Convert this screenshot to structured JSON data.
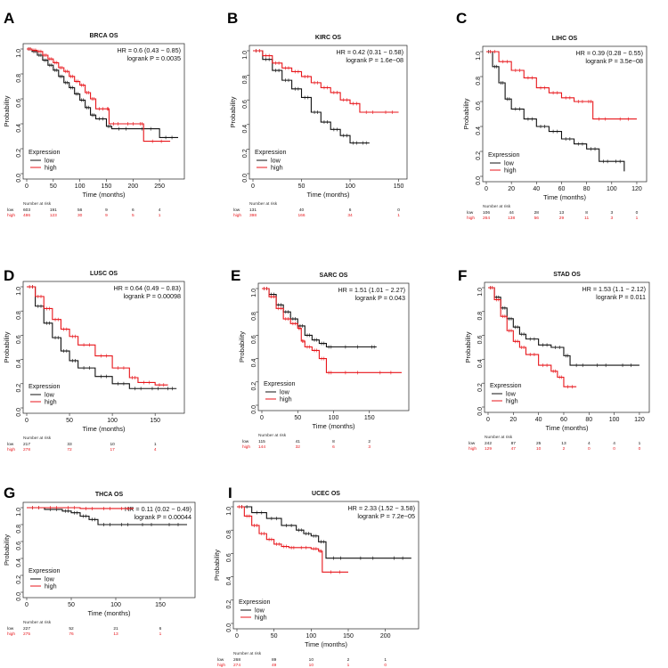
{
  "figure": {
    "colors": {
      "low": "#111111",
      "high": "#e8161b"
    },
    "panels": [
      {
        "id": "BRCA",
        "letter": "A",
        "title": "BRCA OS",
        "hr": "HR = 0.6 (0.43 − 0.85)",
        "logrank": "logrank P = 0.0035",
        "legend_title": "Expression",
        "legend_low": "low",
        "legend_high": "high",
        "xlabel": "Time (months)",
        "ylabel": "Probability",
        "xticks": [
          0,
          50,
          100,
          150,
          200,
          250
        ],
        "xmax": 290,
        "risk_title": "Number at risk",
        "risk_low": [
          "603",
          "191",
          "56",
          "9",
          "6",
          "4"
        ],
        "risk_high": [
          "486",
          "123",
          "30",
          "9",
          "5",
          "1"
        ],
        "chart_data": {
          "type": "line",
          "title": "BRCA OS",
          "xlabel": "Time (months)",
          "ylabel": "Probability",
          "xlim": [
            0,
            290
          ],
          "ylim": [
            0,
            1
          ],
          "series": [
            {
              "name": "low",
              "x": [
                0,
                10,
                20,
                30,
                40,
                50,
                60,
                70,
                80,
                90,
                100,
                110,
                120,
                130,
                150,
                160,
                200,
                250,
                285
              ],
              "y": [
                1,
                0.98,
                0.95,
                0.91,
                0.87,
                0.83,
                0.78,
                0.73,
                0.69,
                0.64,
                0.59,
                0.53,
                0.47,
                0.44,
                0.38,
                0.36,
                0.36,
                0.29,
                0.29
              ]
            },
            {
              "name": "high",
              "x": [
                0,
                10,
                20,
                30,
                40,
                50,
                60,
                70,
                80,
                90,
                100,
                110,
                120,
                130,
                150,
                155,
                180,
                210,
                220,
                270
              ],
              "y": [
                1,
                0.99,
                0.98,
                0.95,
                0.92,
                0.89,
                0.85,
                0.82,
                0.78,
                0.74,
                0.71,
                0.65,
                0.6,
                0.52,
                0.52,
                0.4,
                0.4,
                0.4,
                0.26,
                0.26
              ]
            }
          ]
        }
      },
      {
        "id": "KIRC",
        "letter": "B",
        "title": "KIRC OS",
        "hr": "HR = 0.42 (0.31 − 0.58)",
        "logrank": "logrank P = 1.6e−08",
        "legend_title": "Expression",
        "legend_low": "low",
        "legend_high": "high",
        "xlabel": "Time (months)",
        "ylabel": "Probability",
        "xticks": [
          0,
          50,
          100,
          150
        ],
        "xmax": 155,
        "risk_title": "Number at risk",
        "risk_low": [
          "131",
          "40",
          "6",
          "0"
        ],
        "risk_high": [
          "398",
          "166",
          "34",
          "1"
        ],
        "chart_data": {
          "type": "line",
          "title": "KIRC OS",
          "xlabel": "Time (months)",
          "ylabel": "Probability",
          "xlim": [
            0,
            155
          ],
          "ylim": [
            0,
            1
          ],
          "series": [
            {
              "name": "low",
              "x": [
                0,
                10,
                20,
                30,
                40,
                50,
                60,
                70,
                80,
                90,
                100,
                110,
                120
              ],
              "y": [
                1,
                0.93,
                0.84,
                0.76,
                0.69,
                0.62,
                0.5,
                0.42,
                0.36,
                0.31,
                0.25,
                0.25,
                0.25
              ]
            },
            {
              "name": "high",
              "x": [
                0,
                10,
                20,
                30,
                40,
                50,
                60,
                70,
                80,
                90,
                100,
                110,
                130,
                150
              ],
              "y": [
                1,
                0.96,
                0.9,
                0.86,
                0.83,
                0.79,
                0.74,
                0.7,
                0.66,
                0.6,
                0.57,
                0.5,
                0.5,
                0.5
              ]
            }
          ]
        }
      },
      {
        "id": "LIHC",
        "letter": "C",
        "title": "LIHC OS",
        "hr": "HR = 0.39 (0.28 − 0.55)",
        "logrank": "logrank P = 3.5e−08",
        "legend_title": "Expression",
        "legend_low": "low",
        "legend_high": "high",
        "xlabel": "Time (months)",
        "ylabel": "Probability",
        "xticks": [
          0,
          20,
          40,
          60,
          80,
          100,
          120
        ],
        "xmax": 125,
        "risk_title": "Number at risk",
        "risk_low": [
          "106",
          "44",
          "28",
          "13",
          "8",
          "3",
          "0"
        ],
        "risk_high": [
          "264",
          "138",
          "56",
          "29",
          "11",
          "3",
          "1"
        ],
        "chart_data": {
          "type": "line",
          "title": "LIHC OS",
          "xlabel": "Time (months)",
          "ylabel": "Probability",
          "xlim": [
            0,
            125
          ],
          "ylim": [
            0,
            1
          ],
          "series": [
            {
              "name": "low",
              "x": [
                0,
                5,
                10,
                15,
                20,
                30,
                40,
                50,
                60,
                70,
                80,
                90,
                100,
                110
              ],
              "y": [
                1,
                0.88,
                0.75,
                0.62,
                0.54,
                0.46,
                0.4,
                0.36,
                0.3,
                0.26,
                0.22,
                0.12,
                0.12,
                0.04
              ]
            },
            {
              "name": "high",
              "x": [
                0,
                10,
                20,
                30,
                40,
                50,
                60,
                70,
                80,
                85,
                100,
                120
              ],
              "y": [
                1,
                0.92,
                0.85,
                0.79,
                0.71,
                0.67,
                0.63,
                0.6,
                0.6,
                0.46,
                0.46,
                0.46
              ]
            }
          ]
        }
      },
      {
        "id": "LUSC",
        "letter": "D",
        "title": "LUSC OS",
        "hr": "HR = 0.64 (0.49 − 0.83)",
        "logrank": "logrank P = 0.00098",
        "legend_title": "Expression",
        "legend_low": "low",
        "legend_high": "high",
        "xlabel": "Time (months)",
        "ylabel": "Probability",
        "xticks": [
          0,
          50,
          100,
          150
        ],
        "xmax": 180,
        "risk_title": "Number at risk",
        "risk_low": [
          "217",
          "33",
          "10",
          "1"
        ],
        "risk_high": [
          "278",
          "72",
          "17",
          "4"
        ],
        "chart_data": {
          "type": "line",
          "title": "LUSC OS",
          "xlabel": "Time (months)",
          "ylabel": "Probability",
          "xlim": [
            0,
            180
          ],
          "ylim": [
            0,
            1
          ],
          "series": [
            {
              "name": "low",
              "x": [
                0,
                10,
                20,
                30,
                40,
                50,
                60,
                80,
                100,
                120,
                140,
                160,
                175
              ],
              "y": [
                1,
                0.84,
                0.7,
                0.58,
                0.47,
                0.39,
                0.33,
                0.26,
                0.2,
                0.16,
                0.16,
                0.16,
                0.16
              ]
            },
            {
              "name": "high",
              "x": [
                0,
                10,
                20,
                30,
                40,
                50,
                60,
                80,
                100,
                120,
                130,
                150,
                165
              ],
              "y": [
                1,
                0.92,
                0.82,
                0.73,
                0.65,
                0.59,
                0.52,
                0.43,
                0.33,
                0.25,
                0.21,
                0.19,
                0.19
              ]
            }
          ]
        }
      },
      {
        "id": "SARC",
        "letter": "E",
        "title": "SARC OS",
        "hr": "HR = 1.51 (1.01 − 2.27)",
        "logrank": "logrank P = 0.043",
        "legend_title": "Expression",
        "legend_low": "low",
        "legend_high": "high",
        "xlabel": "Time (months)",
        "ylabel": "Probability",
        "xticks": [
          0,
          50,
          100,
          150
        ],
        "xmax": 200,
        "risk_title": "Number at risk",
        "risk_low": [
          "115",
          "41",
          "8",
          "2"
        ],
        "risk_high": [
          "144",
          "32",
          "6",
          "3"
        ],
        "chart_data": {
          "type": "line",
          "title": "SARC OS",
          "xlabel": "Time (months)",
          "ylabel": "Probability",
          "xlim": [
            0,
            200
          ],
          "ylim": [
            0,
            1
          ],
          "series": [
            {
              "name": "low",
              "x": [
                0,
                10,
                20,
                30,
                40,
                50,
                60,
                70,
                80,
                90,
                100,
                150,
                160
              ],
              "y": [
                1,
                0.95,
                0.86,
                0.8,
                0.74,
                0.68,
                0.6,
                0.56,
                0.53,
                0.5,
                0.5,
                0.5,
                0.5
              ]
            },
            {
              "name": "high",
              "x": [
                0,
                10,
                20,
                30,
                40,
                50,
                55,
                60,
                70,
                80,
                90,
                100,
                150,
                195
              ],
              "y": [
                1,
                0.93,
                0.83,
                0.74,
                0.7,
                0.66,
                0.55,
                0.5,
                0.47,
                0.4,
                0.28,
                0.28,
                0.28,
                0.28
              ]
            }
          ]
        }
      },
      {
        "id": "STAD",
        "letter": "F",
        "title": "STAD OS",
        "hr": "HR = 1.53 (1.1 − 2.12)",
        "logrank": "logrank P = 0.011",
        "legend_title": "Expression",
        "legend_low": "low",
        "legend_high": "high",
        "xlabel": "Time (months)",
        "ylabel": "Probability",
        "xticks": [
          0,
          20,
          40,
          60,
          80,
          100,
          120
        ],
        "xmax": 125,
        "risk_title": "Number at risk",
        "risk_low": [
          "242",
          "87",
          "25",
          "13",
          "4",
          "4",
          "1"
        ],
        "risk_high": [
          "129",
          "47",
          "10",
          "2",
          "0",
          "0",
          "0"
        ],
        "chart_data": {
          "type": "line",
          "title": "STAD OS",
          "xlabel": "Time (months)",
          "ylabel": "Probability",
          "xlim": [
            0,
            125
          ],
          "ylim": [
            0,
            1
          ],
          "series": [
            {
              "name": "low",
              "x": [
                0,
                5,
                10,
                15,
                20,
                25,
                30,
                40,
                50,
                60,
                65,
                80,
                100,
                120
              ],
              "y": [
                1,
                0.92,
                0.83,
                0.74,
                0.67,
                0.61,
                0.57,
                0.52,
                0.5,
                0.43,
                0.35,
                0.35,
                0.35,
                0.35
              ]
            },
            {
              "name": "high",
              "x": [
                0,
                5,
                10,
                15,
                20,
                25,
                30,
                40,
                50,
                55,
                60,
                70
              ],
              "y": [
                1,
                0.9,
                0.76,
                0.64,
                0.55,
                0.5,
                0.44,
                0.35,
                0.3,
                0.25,
                0.17,
                0.17
              ]
            }
          ]
        }
      },
      {
        "id": "THCA",
        "letter": "G",
        "title": "THCA OS",
        "hr": "HR = 0.11 (0.02 − 0.49)",
        "logrank": "logrank P = 0.00044",
        "legend_title": "Expression",
        "legend_low": "low",
        "legend_high": "high",
        "xlabel": "Time (months)",
        "ylabel": "Probability",
        "xticks": [
          0,
          50,
          100,
          150
        ],
        "xmax": 185,
        "risk_title": "Number at risk",
        "risk_low": [
          "227",
          "52",
          "21",
          "6"
        ],
        "risk_high": [
          "275",
          "76",
          "13",
          "1"
        ],
        "chart_data": {
          "type": "line",
          "title": "THCA OS",
          "xlabel": "Time (months)",
          "ylabel": "Probability",
          "xlim": [
            0,
            185
          ],
          "ylim": [
            0,
            1
          ],
          "series": [
            {
              "name": "low",
              "x": [
                0,
                20,
                40,
                50,
                60,
                70,
                80,
                100,
                120,
                150,
                180
              ],
              "y": [
                1,
                0.98,
                0.96,
                0.94,
                0.9,
                0.86,
                0.8,
                0.8,
                0.8,
                0.8,
                0.8
              ]
            },
            {
              "name": "high",
              "x": [
                0,
                20,
                40,
                60,
                80,
                100,
                120
              ],
              "y": [
                1,
                1,
                1,
                0.99,
                0.99,
                0.99,
                0.99
              ]
            }
          ]
        }
      },
      {
        "id": "UCEC",
        "letter": "I",
        "title": "UCEC OS",
        "hr": "HR = 2.33 (1.52 − 3.58)",
        "logrank": "logrank P = 7.2e−05",
        "legend_title": "Expression",
        "legend_low": "low",
        "legend_high": "high",
        "xlabel": "Time (months)",
        "ylabel": "Probability",
        "xticks": [
          0,
          50,
          100,
          150,
          200
        ],
        "xmax": 240,
        "risk_title": "Number at risk",
        "risk_low": [
          "268",
          "89",
          "10",
          "2",
          "1"
        ],
        "risk_high": [
          "274",
          "49",
          "10",
          "1",
          "0"
        ],
        "chart_data": {
          "type": "line",
          "title": "UCEC OS",
          "xlabel": "Time (months)",
          "ylabel": "Probability",
          "xlim": [
            0,
            240
          ],
          "ylim": [
            0,
            1
          ],
          "series": [
            {
              "name": "low",
              "x": [
                0,
                20,
                40,
                60,
                80,
                90,
                100,
                110,
                120,
                150,
                200,
                235
              ],
              "y": [
                1,
                0.95,
                0.9,
                0.84,
                0.8,
                0.77,
                0.75,
                0.7,
                0.56,
                0.56,
                0.56,
                0.56
              ]
            },
            {
              "name": "high",
              "x": [
                0,
                10,
                20,
                30,
                40,
                50,
                60,
                70,
                80,
                100,
                110,
                115,
                150
              ],
              "y": [
                1,
                0.92,
                0.84,
                0.77,
                0.72,
                0.68,
                0.66,
                0.65,
                0.65,
                0.64,
                0.62,
                0.44,
                0.44
              ]
            }
          ]
        }
      }
    ]
  }
}
